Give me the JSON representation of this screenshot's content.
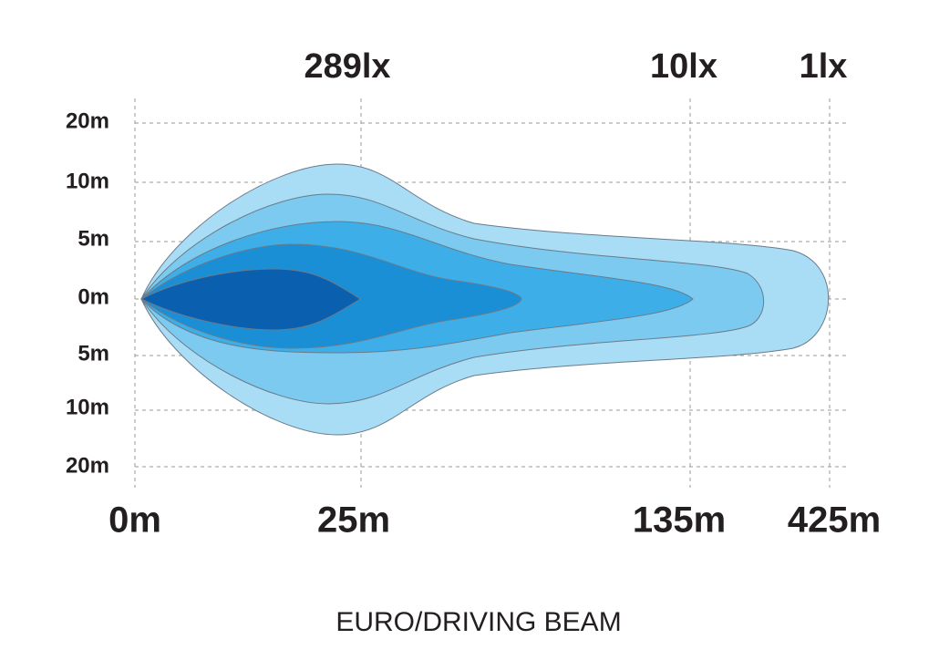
{
  "lux_labels": [
    "289lx",
    "10lx",
    "1lx"
  ],
  "y_labels": [
    "20m",
    "10m",
    "5m",
    "0m",
    "5m",
    "10m",
    "20m"
  ],
  "x_labels": [
    "0m",
    "25m",
    "135m",
    "425m"
  ],
  "caption": "EURO/DRIVING BEAM"
}
